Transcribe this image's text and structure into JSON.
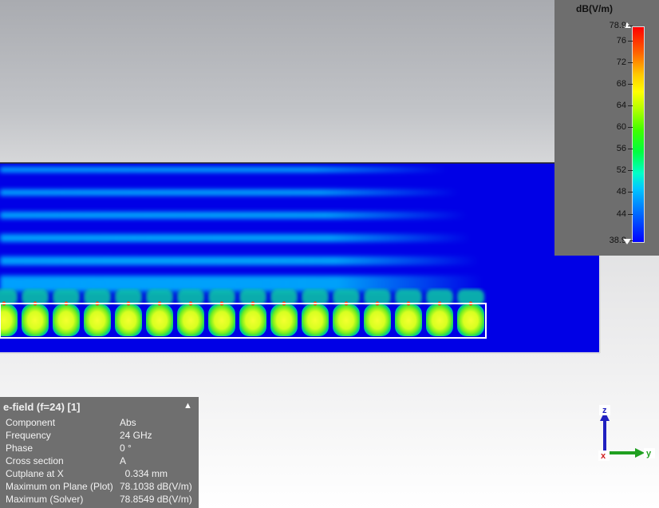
{
  "legend": {
    "title": "dB(V/m)",
    "max_label": "78.9",
    "min_label": "38.9",
    "ticks": [
      "76",
      "72",
      "68",
      "64",
      "60",
      "56",
      "52",
      "48",
      "44"
    ]
  },
  "colormap": {
    "low": "#0000ff",
    "high": "#ff0000"
  },
  "info": {
    "title": "e-field (f=24) [1]",
    "rows": [
      {
        "key": "Component",
        "value": "Abs"
      },
      {
        "key": "Frequency",
        "value": "24 GHz"
      },
      {
        "key": "Phase",
        "value": "0 °"
      },
      {
        "key": "Cross section",
        "value": "A"
      },
      {
        "key": "Cutplane at X",
        "value": "  0.334 mm"
      },
      {
        "key": "Maximum on Plane (Plot)",
        "value": "78.1038 dB(V/m)"
      },
      {
        "key": "Maximum (Solver)",
        "value": "78.8549 dB(V/m)"
      }
    ]
  },
  "axes": {
    "z_label": "z",
    "x_label": "x",
    "y_label": "y"
  },
  "structure": {
    "cell_count": 16
  }
}
